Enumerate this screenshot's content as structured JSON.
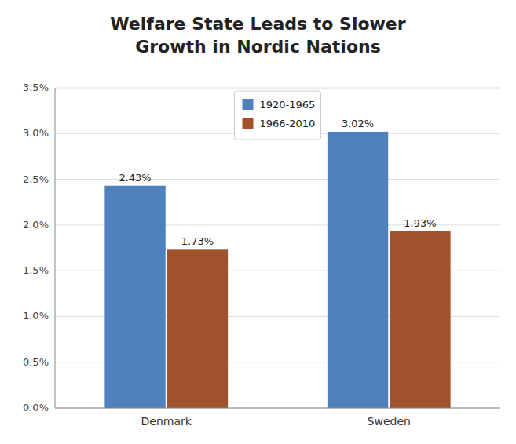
{
  "chart_data": {
    "type": "bar",
    "title": "Welfare State Leads to Slower\nGrowth in Nordic Nations",
    "categories": [
      "Denmark",
      "Sweden"
    ],
    "series": [
      {
        "name": "1920-1965",
        "color": "#4F81BD",
        "values": [
          0.0243,
          0.0302
        ],
        "value_labels": [
          "2.43%",
          "3.02%"
        ]
      },
      {
        "name": "1966-2010",
        "color": "#A0522D",
        "values": [
          0.0173,
          0.0193
        ],
        "value_labels": [
          "1.73%",
          "1.93%"
        ]
      }
    ],
    "ylim": [
      0,
      0.035
    ],
    "yticks": [
      {
        "value": 0.0,
        "label": "0.0%"
      },
      {
        "value": 0.005,
        "label": "0.5%"
      },
      {
        "value": 0.01,
        "label": "1.0%"
      },
      {
        "value": 0.015,
        "label": "1.5%"
      },
      {
        "value": 0.02,
        "label": "2.0%"
      },
      {
        "value": 0.025,
        "label": "2.5%"
      },
      {
        "value": 0.03,
        "label": "3.0%"
      },
      {
        "value": 0.035,
        "label": "3.5%"
      }
    ],
    "grid": true,
    "legend": "top",
    "data_labels": true
  }
}
